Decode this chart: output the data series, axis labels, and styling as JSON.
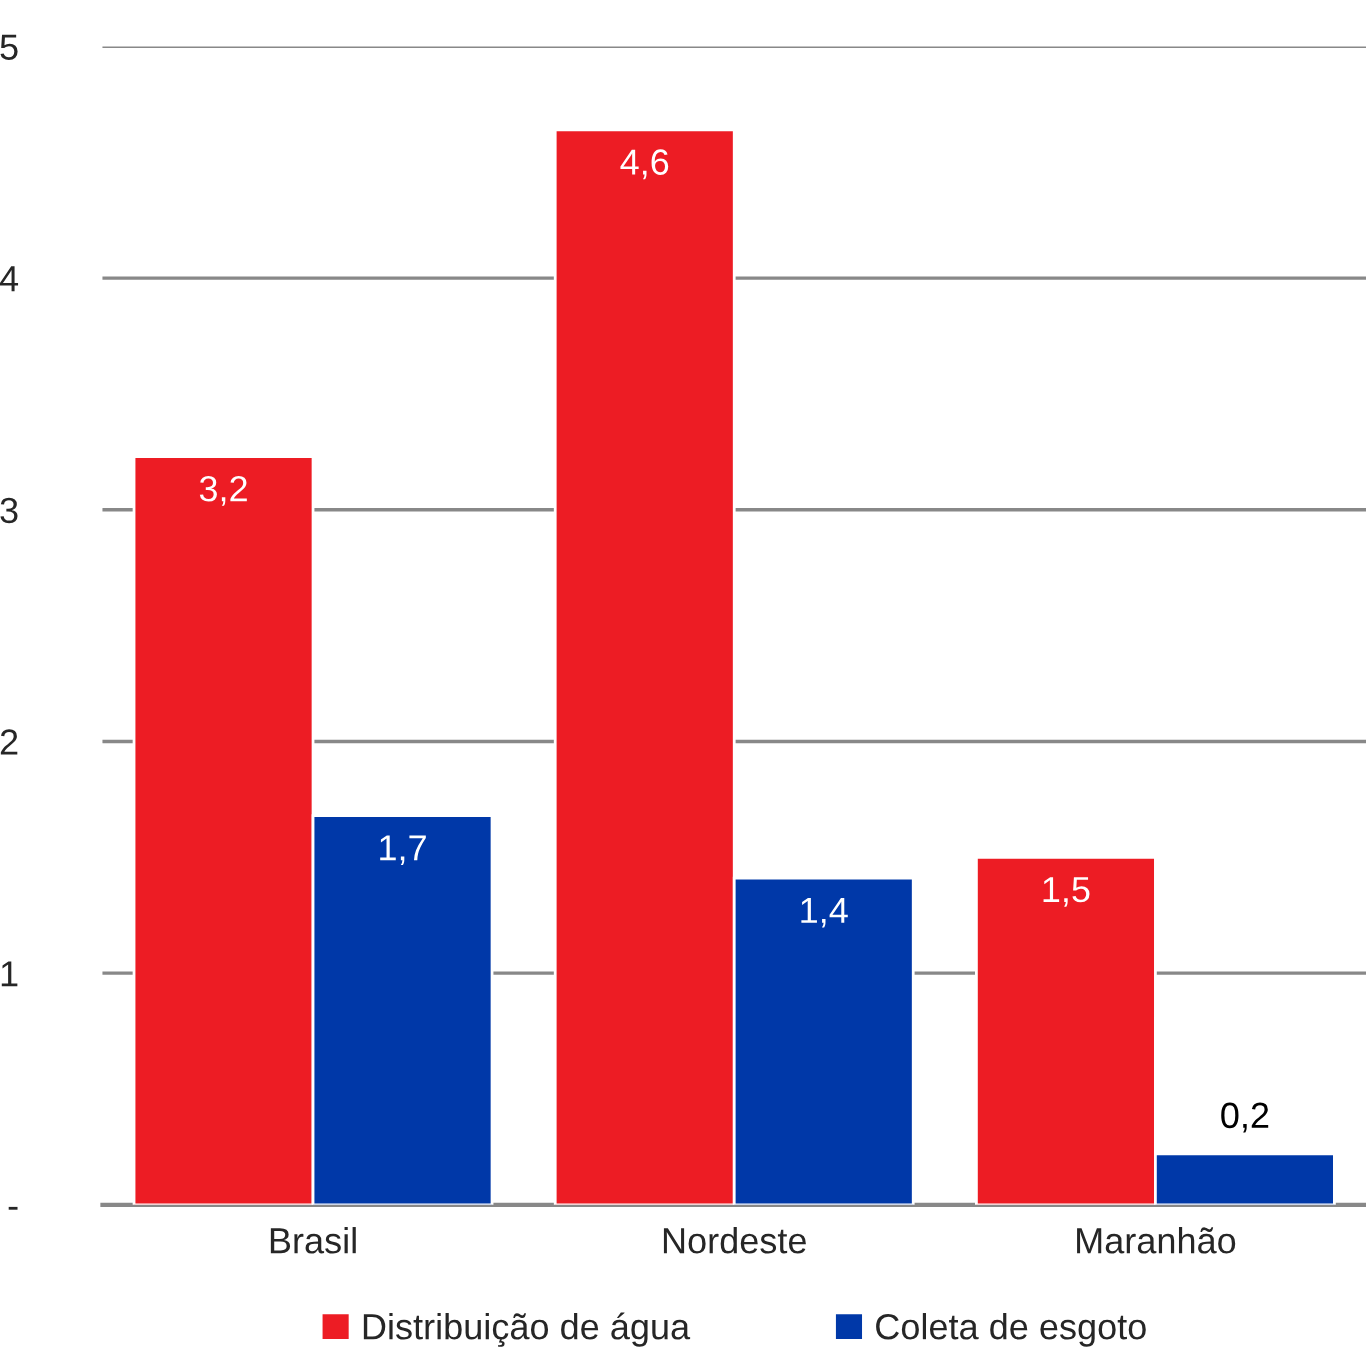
{
  "chart_data": {
    "type": "bar",
    "categories": [
      "Brasil",
      "Nordeste",
      "Maranhão"
    ],
    "series": [
      {
        "name": "Distribuição de água",
        "color": "#ed1c24",
        "values": [
          3.23,
          4.64,
          1.5
        ],
        "value_labels": [
          "3,2",
          "4,6",
          "1,5"
        ]
      },
      {
        "name": "Coleta de esgoto",
        "color": "#0038a8",
        "values": [
          1.68,
          1.41,
          0.22
        ],
        "value_labels": [
          "1,7",
          "1,4",
          "0,2"
        ]
      }
    ],
    "ylim": [
      0,
      5
    ],
    "yticks": [
      {
        "value": 0,
        "label": "-"
      },
      1,
      2,
      3,
      4,
      5
    ],
    "grid": "y",
    "legend": "bottom"
  }
}
